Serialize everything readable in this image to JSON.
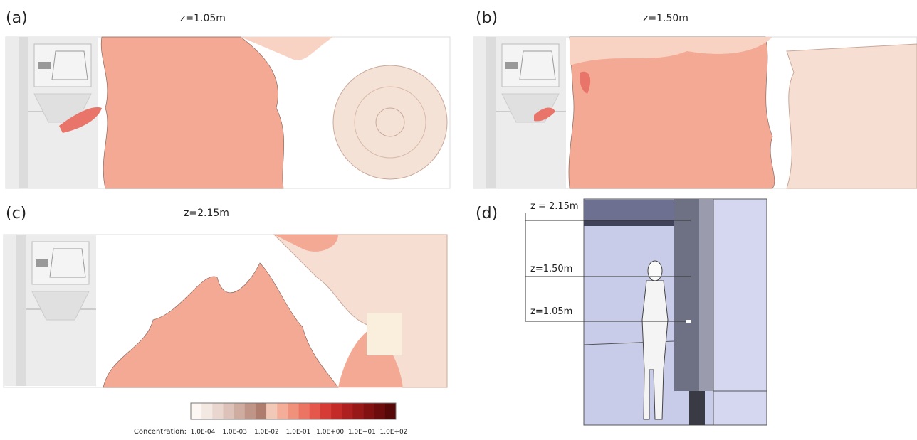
{
  "panels": [
    {
      "label": "(a)",
      "title": "z=1.05m"
    },
    {
      "label": "(b)",
      "title": "z=1.50m"
    },
    {
      "label": "(c)",
      "title": "z=2.15m"
    },
    {
      "label": "(d)",
      "heights": [
        "z = 2.15m",
        "z=1.50m",
        "z=1.05m"
      ]
    }
  ],
  "colorbar": {
    "label": "Concentration:",
    "ticks": [
      "1.0E-04",
      "1.0E-03",
      "1.0E-02",
      "1.0E-01",
      "1.0E+00",
      "1.0E+01",
      "1.0E+02"
    ]
  }
}
